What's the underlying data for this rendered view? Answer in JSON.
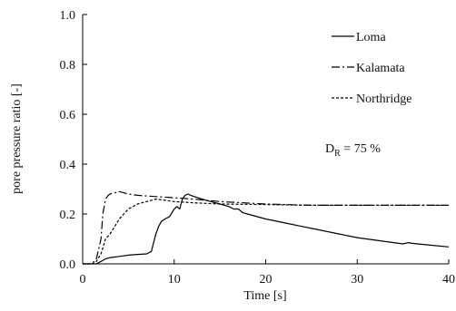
{
  "chart_data": {
    "type": "line",
    "xlabel": "Time [s]",
    "ylabel": "pore pressure ratio [-]",
    "xlim": [
      0,
      40
    ],
    "ylim": [
      0,
      1.0
    ],
    "x_ticks": [
      "0",
      "10",
      "20",
      "30",
      "40"
    ],
    "y_ticks": [
      "0.0",
      "0.2",
      "0.4",
      "0.6",
      "0.8",
      "1.0"
    ],
    "grid": false,
    "legend_position": "top-right",
    "annotation": {
      "symbol": "D",
      "subscript": "R",
      "text": " = 75 %"
    },
    "series": [
      {
        "name": "Loma",
        "style": "solid",
        "x": [
          0,
          1.0,
          1.5,
          2.0,
          2.5,
          3.0,
          4.0,
          5.0,
          6.0,
          7.0,
          7.5,
          8.0,
          8.3,
          8.6,
          9.0,
          9.5,
          10.0,
          10.3,
          10.6,
          10.9,
          11.2,
          11.5,
          11.8,
          12.2,
          12.6,
          13.0,
          14.0,
          15.0,
          16.0,
          16.5,
          17.0,
          17.5,
          18.0,
          20.0,
          22.0,
          24.0,
          26.0,
          28.0,
          30.0,
          32.0,
          34.0,
          35.0,
          35.6,
          36.0,
          38.0,
          40.0
        ],
        "y": [
          0,
          0,
          0.0,
          0.01,
          0.02,
          0.025,
          0.03,
          0.035,
          0.038,
          0.04,
          0.05,
          0.12,
          0.15,
          0.17,
          0.18,
          0.19,
          0.22,
          0.23,
          0.22,
          0.26,
          0.275,
          0.28,
          0.275,
          0.27,
          0.265,
          0.26,
          0.25,
          0.24,
          0.23,
          0.22,
          0.22,
          0.205,
          0.2,
          0.18,
          0.165,
          0.15,
          0.135,
          0.12,
          0.105,
          0.095,
          0.085,
          0.08,
          0.085,
          0.082,
          0.075,
          0.068
        ]
      },
      {
        "name": "Kalamata",
        "style": "dashdot",
        "x": [
          0,
          1.0,
          1.5,
          2.0,
          2.2,
          2.5,
          2.8,
          3.0,
          3.5,
          4.0,
          4.5,
          5.0,
          6.0,
          8.0,
          10.0,
          12.0,
          15.0,
          20.0,
          25.0,
          30.0,
          35.0,
          40.0
        ],
        "y": [
          0,
          0,
          0.02,
          0.1,
          0.2,
          0.26,
          0.275,
          0.28,
          0.285,
          0.29,
          0.285,
          0.28,
          0.275,
          0.27,
          0.265,
          0.26,
          0.25,
          0.24,
          0.235,
          0.235,
          0.235,
          0.235
        ]
      },
      {
        "name": "Northridge",
        "style": "dotted",
        "x": [
          0,
          1.0,
          1.5,
          2.0,
          2.5,
          3.0,
          3.5,
          4.0,
          4.5,
          5.0,
          5.5,
          6.0,
          6.5,
          7.0,
          7.5,
          8.0,
          9.0,
          10.0,
          12.0,
          15.0,
          20.0,
          25.0,
          30.0,
          35.0,
          40.0
        ],
        "y": [
          0,
          0,
          0.01,
          0.04,
          0.1,
          0.12,
          0.15,
          0.18,
          0.2,
          0.22,
          0.23,
          0.24,
          0.245,
          0.25,
          0.255,
          0.26,
          0.255,
          0.25,
          0.245,
          0.24,
          0.238,
          0.235,
          0.235,
          0.235,
          0.235
        ]
      }
    ]
  }
}
